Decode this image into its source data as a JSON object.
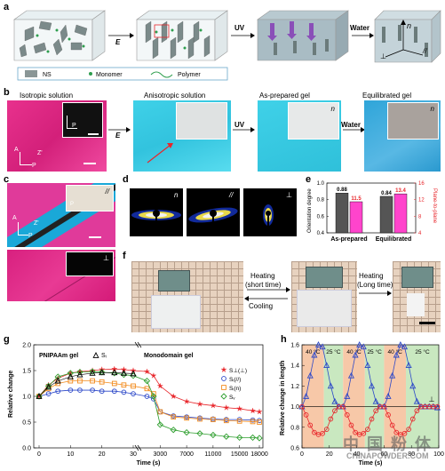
{
  "panel_a": {
    "label": "a",
    "step_E": "E",
    "step_UV": "UV",
    "step_Water": "Water",
    "axes": {
      "n": "n",
      "perp": "⊥",
      "par": "//"
    },
    "legend": [
      {
        "key": "ns",
        "text": "NS"
      },
      {
        "key": "monomer",
        "text": "Monomer"
      },
      {
        "key": "polymer",
        "text": "Polymer"
      }
    ]
  },
  "panel_b": {
    "label": "b",
    "titles": [
      "Isotropic solution",
      "Anisotropic solution",
      "As-prepared gel",
      "Equilibrated gel"
    ],
    "arrows": [
      "E",
      "UV",
      "Water"
    ],
    "inset_p": "P",
    "compass": {
      "a": "A",
      "p": "P",
      "z": "Z'"
    },
    "inset_n1": "n",
    "inset_n2": "n"
  },
  "panel_c": {
    "label": "c",
    "inset_top": "//",
    "inset_bottom": "⊥",
    "compass": {
      "a": "A",
      "p": "P",
      "z": "Z'"
    },
    "inset_p": "P"
  },
  "panel_d": {
    "label": "d",
    "labels": [
      "n",
      "//",
      "⊥"
    ]
  },
  "panel_e": {
    "label": "e"
  },
  "panel_f": {
    "label": "f",
    "arrow1_top": "Heating",
    "arrow1_top2": "(short time)",
    "arrow1_bottom": "Cooling",
    "arrow2_top": "Heating",
    "arrow2_top2": "(Long time)"
  },
  "panel_g": {
    "label": "g",
    "gel_a": "PNIPAAm gel",
    "gel_b": "Monodomain gel",
    "tri_label": "Sᵢ"
  },
  "panel_h": {
    "label": "h",
    "temps": [
      "40 °C",
      "25 °C",
      "40 °C",
      "25 °C",
      "40 °C",
      "25 °C"
    ],
    "perp": "⊥"
  },
  "watermark": {
    "line1": "中 国 粉 体",
    "line2": "CHINAPOWDER.COM"
  },
  "chart_data": [
    {
      "panel": "e",
      "type": "bar",
      "categories": [
        "As-prepared",
        "Equilibrated"
      ],
      "series": [
        {
          "name": "Orientation degree",
          "values": [
            0.88,
            0.84
          ],
          "color": "#555555"
        },
        {
          "name": "Plane-to-plane",
          "values": [
            11.5,
            13.4
          ],
          "color": "#ff44cc"
        }
      ],
      "ylabel": "Orientation degree",
      "ylabel_right": "Plane-to-plane",
      "ylim": [
        0.4,
        1.0
      ],
      "ylim_right": [
        4,
        16
      ],
      "yticks": [
        "0.4",
        "0.6",
        "0.8",
        "1.0"
      ],
      "yticks_right": [
        "4",
        "8",
        "12",
        "16"
      ],
      "value_labels": [
        "0.88",
        "11.5",
        "0.84",
        "13.4"
      ]
    },
    {
      "panel": "g",
      "type": "line",
      "xlabel": "Time (s)",
      "ylabel": "Relative change",
      "xticks": [
        "0",
        "10",
        "20",
        "30",
        "3000",
        "7000",
        "11000",
        "15000",
        "18000"
      ],
      "yticks": [
        "0.0",
        "0.5",
        "1.0",
        "1.5",
        "2.0"
      ],
      "ylim": [
        0.0,
        2.0
      ],
      "legend": [
        {
          "name": "S⊥(⊥)",
          "color": "#e8262b",
          "marker": "star"
        },
        {
          "name": "Sᵢ(//)",
          "color": "#2b47c8",
          "marker": "circle"
        },
        {
          "name": "Sᵢ(n)",
          "color": "#f28a1c",
          "marker": "square"
        },
        {
          "name": "Sᵥ",
          "color": "#2e9e2e",
          "marker": "diamond"
        }
      ],
      "series": [
        {
          "name": "S⊥(⊥)",
          "x": [
            0,
            3,
            6,
            10,
            13,
            17,
            20,
            24,
            27,
            30,
            1000,
            2000,
            3000,
            5000,
            7000,
            9000,
            11000,
            13000,
            15000,
            17000,
            18000
          ],
          "values": [
            1.0,
            1.22,
            1.35,
            1.45,
            1.48,
            1.5,
            1.52,
            1.53,
            1.52,
            1.5,
            1.48,
            1.4,
            1.2,
            1.0,
            0.9,
            0.85,
            0.82,
            0.78,
            0.76,
            0.72,
            0.7
          ]
        },
        {
          "name": "Sᵢ(//)",
          "x": [
            0,
            3,
            6,
            10,
            13,
            17,
            20,
            24,
            27,
            30,
            1000,
            2000,
            3000,
            5000,
            7000,
            9000,
            11000,
            13000,
            15000,
            17000,
            18000
          ],
          "values": [
            1.0,
            1.05,
            1.1,
            1.12,
            1.12,
            1.12,
            1.1,
            1.1,
            1.08,
            1.05,
            1.0,
            0.95,
            0.7,
            0.62,
            0.6,
            0.58,
            0.56,
            0.55,
            0.55,
            0.54,
            0.53
          ]
        },
        {
          "name": "Sᵢ(n)",
          "x": [
            0,
            3,
            6,
            10,
            13,
            17,
            20,
            24,
            27,
            30,
            1000,
            2000,
            3000,
            5000,
            7000,
            9000,
            11000,
            13000,
            15000,
            17000,
            18000
          ],
          "values": [
            1.0,
            1.15,
            1.25,
            1.3,
            1.3,
            1.3,
            1.28,
            1.25,
            1.22,
            1.2,
            1.15,
            1.05,
            0.7,
            0.6,
            0.58,
            0.56,
            0.55,
            0.53,
            0.52,
            0.51,
            0.5
          ]
        },
        {
          "name": "Sᵥ",
          "x": [
            0,
            3,
            6,
            10,
            13,
            17,
            20,
            24,
            27,
            30,
            1000,
            2000,
            3000,
            5000,
            7000,
            9000,
            11000,
            13000,
            15000,
            17000,
            18000
          ],
          "values": [
            1.0,
            1.2,
            1.38,
            1.45,
            1.47,
            1.48,
            1.47,
            1.45,
            1.42,
            1.4,
            1.3,
            1.0,
            0.45,
            0.35,
            0.3,
            0.28,
            0.25,
            0.22,
            0.2,
            0.2,
            0.19
          ]
        },
        {
          "name": "PNIPAAm gel",
          "x": [
            0,
            3,
            6,
            10,
            13,
            17,
            20,
            24,
            27,
            30
          ],
          "values": [
            1.0,
            1.18,
            1.3,
            1.38,
            1.42,
            1.45,
            1.46,
            1.46,
            1.45,
            1.44
          ]
        }
      ]
    },
    {
      "panel": "h",
      "type": "line",
      "xlabel": "Time (s)",
      "ylabel": "Relative change in length",
      "xticks": [
        "0",
        "20",
        "40",
        "60",
        "80",
        "100"
      ],
      "yticks": [
        "0.6",
        "0.8",
        "1.0",
        "1.2",
        "1.4",
        "1.6"
      ],
      "xlim": [
        0,
        100
      ],
      "ylim": [
        0.6,
        1.6
      ],
      "series": [
        {
          "name": "⊥",
          "color": "#2b47c8",
          "marker": "triangle",
          "x": [
            0,
            3,
            6,
            9,
            12,
            15,
            18,
            21,
            24,
            27,
            30,
            33,
            36,
            39,
            42,
            45,
            48,
            51,
            54,
            57,
            60,
            63,
            66,
            69,
            72,
            75,
            78,
            81,
            84,
            87,
            90,
            93,
            96,
            99
          ],
          "values": [
            1.0,
            1.1,
            1.3,
            1.5,
            1.6,
            1.58,
            1.4,
            1.2,
            1.05,
            1.0,
            1.0,
            1.1,
            1.3,
            1.5,
            1.6,
            1.58,
            1.4,
            1.2,
            1.05,
            1.0,
            1.0,
            1.1,
            1.3,
            1.5,
            1.6,
            1.58,
            1.4,
            1.2,
            1.05,
            1.0,
            1.0,
            1.0,
            1.0,
            0.99
          ]
        },
        {
          "name": "//",
          "color": "#e8262b",
          "marker": "circle",
          "x": [
            0,
            3,
            6,
            9,
            12,
            15,
            18,
            21,
            24,
            27,
            30,
            33,
            36,
            39,
            42,
            45,
            48,
            51,
            54,
            57,
            60,
            63,
            66,
            69,
            72,
            75,
            78,
            81,
            84,
            87,
            90,
            93,
            96,
            99
          ],
          "values": [
            1.0,
            0.92,
            0.82,
            0.75,
            0.73,
            0.74,
            0.78,
            0.88,
            0.96,
            1.0,
            1.0,
            0.92,
            0.82,
            0.75,
            0.73,
            0.74,
            0.78,
            0.88,
            0.96,
            1.0,
            1.0,
            0.92,
            0.82,
            0.75,
            0.73,
            0.74,
            0.78,
            0.88,
            0.96,
            1.0,
            1.0,
            1.0,
            1.0,
            1.0
          ]
        }
      ]
    }
  ]
}
